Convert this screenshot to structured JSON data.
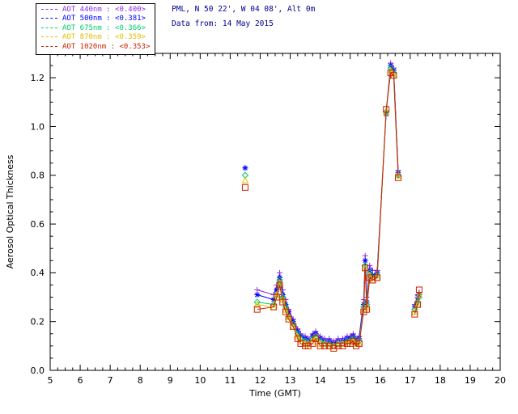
{
  "header": {
    "station": "PML, N 50 22', W 04 08', Alt 0m",
    "date": "Data from: 14 May 2015"
  },
  "colors": {
    "header_text": "#00008b",
    "axis": "#000000",
    "background": "#ffffff"
  },
  "chart_data": {
    "type": "line",
    "title": "",
    "xlabel": "Time (GMT)",
    "ylabel": "Aerosol Optical Thickness",
    "xlim": [
      5,
      20
    ],
    "ylim": [
      0,
      1.3
    ],
    "xticks": [
      5,
      6,
      7,
      8,
      9,
      10,
      11,
      12,
      13,
      14,
      15,
      16,
      17,
      18,
      19,
      20
    ],
    "yticks": [
      0.0,
      0.2,
      0.4,
      0.6,
      0.8,
      1.0,
      1.2
    ],
    "grid": false,
    "legend_position": "top-left",
    "segments_x": [
      [
        11.5
      ],
      [
        11.9,
        12.45,
        12.55,
        12.65,
        12.75,
        12.85,
        12.95,
        13.1,
        13.25,
        13.35,
        13.5,
        13.6,
        13.75,
        13.85,
        14.0,
        14.15,
        14.3,
        14.45,
        14.6,
        14.75,
        14.9,
        15.0,
        15.1,
        15.2,
        15.3,
        15.45,
        15.5,
        15.55,
        15.65,
        15.75,
        15.9,
        16.2,
        16.35,
        16.45,
        16.6
      ],
      [
        17.15,
        17.25,
        17.3
      ]
    ],
    "series": [
      {
        "name": "AOT  440nm",
        "mean": "<0.400>",
        "color": "#8a2be2",
        "marker": "plus",
        "segments_y": [
          [
            0.83
          ],
          [
            0.33,
            0.31,
            0.35,
            0.4,
            0.33,
            0.29,
            0.25,
            0.21,
            0.17,
            0.15,
            0.14,
            0.13,
            0.15,
            0.16,
            0.14,
            0.13,
            0.13,
            0.12,
            0.13,
            0.13,
            0.14,
            0.14,
            0.15,
            0.13,
            0.14,
            0.29,
            0.47,
            0.3,
            0.43,
            0.41,
            0.41,
            1.06,
            1.26,
            1.24,
            0.82
          ],
          [
            0.27,
            0.31,
            0.32
          ]
        ]
      },
      {
        "name": "AOT  500nm",
        "mean": "<0.381>",
        "color": "#0000ff",
        "marker": "asterisk",
        "segments_y": [
          [
            0.83
          ],
          [
            0.31,
            0.29,
            0.33,
            0.38,
            0.31,
            0.27,
            0.24,
            0.2,
            0.16,
            0.14,
            0.13,
            0.12,
            0.14,
            0.15,
            0.13,
            0.12,
            0.12,
            0.11,
            0.12,
            0.12,
            0.13,
            0.13,
            0.14,
            0.12,
            0.13,
            0.27,
            0.45,
            0.28,
            0.41,
            0.39,
            0.4,
            1.05,
            1.25,
            1.23,
            0.81
          ],
          [
            0.26,
            0.3,
            0.31
          ]
        ]
      },
      {
        "name": "AOT  675nm",
        "mean": "<0.366>",
        "color": "#00cc66",
        "marker": "diamond",
        "segments_y": [
          [
            0.8
          ],
          [
            0.28,
            0.27,
            0.31,
            0.37,
            0.3,
            0.26,
            0.22,
            0.19,
            0.15,
            0.13,
            0.12,
            0.11,
            0.13,
            0.14,
            0.12,
            0.11,
            0.11,
            0.1,
            0.11,
            0.11,
            0.12,
            0.12,
            0.13,
            0.11,
            0.12,
            0.26,
            0.43,
            0.27,
            0.4,
            0.38,
            0.39,
            1.06,
            1.24,
            1.22,
            0.8
          ],
          [
            0.25,
            0.28,
            0.3
          ]
        ]
      },
      {
        "name": "AOT  870nm",
        "mean": "<0.359>",
        "color": "#e0c000",
        "marker": "triangle",
        "segments_y": [
          [
            0.78
          ],
          [
            0.27,
            0.26,
            0.31,
            0.36,
            0.29,
            0.25,
            0.22,
            0.18,
            0.14,
            0.12,
            0.11,
            0.11,
            0.12,
            0.13,
            0.11,
            0.11,
            0.1,
            0.1,
            0.11,
            0.11,
            0.11,
            0.12,
            0.12,
            0.11,
            0.11,
            0.25,
            0.42,
            0.26,
            0.39,
            0.37,
            0.38,
            1.06,
            1.23,
            1.21,
            0.8
          ],
          [
            0.24,
            0.27,
            0.31
          ]
        ]
      },
      {
        "name": "AOT 1020nm",
        "mean": "<0.353>",
        "color": "#cc2200",
        "marker": "square",
        "segments_y": [
          [
            0.75
          ],
          [
            0.25,
            0.26,
            0.3,
            0.35,
            0.28,
            0.24,
            0.21,
            0.18,
            0.13,
            0.11,
            0.1,
            0.1,
            0.11,
            0.13,
            0.1,
            0.1,
            0.1,
            0.09,
            0.1,
            0.1,
            0.11,
            0.11,
            0.12,
            0.1,
            0.11,
            0.24,
            0.42,
            0.25,
            0.38,
            0.37,
            0.38,
            1.07,
            1.22,
            1.21,
            0.79
          ],
          [
            0.23,
            0.27,
            0.33
          ]
        ]
      }
    ]
  }
}
